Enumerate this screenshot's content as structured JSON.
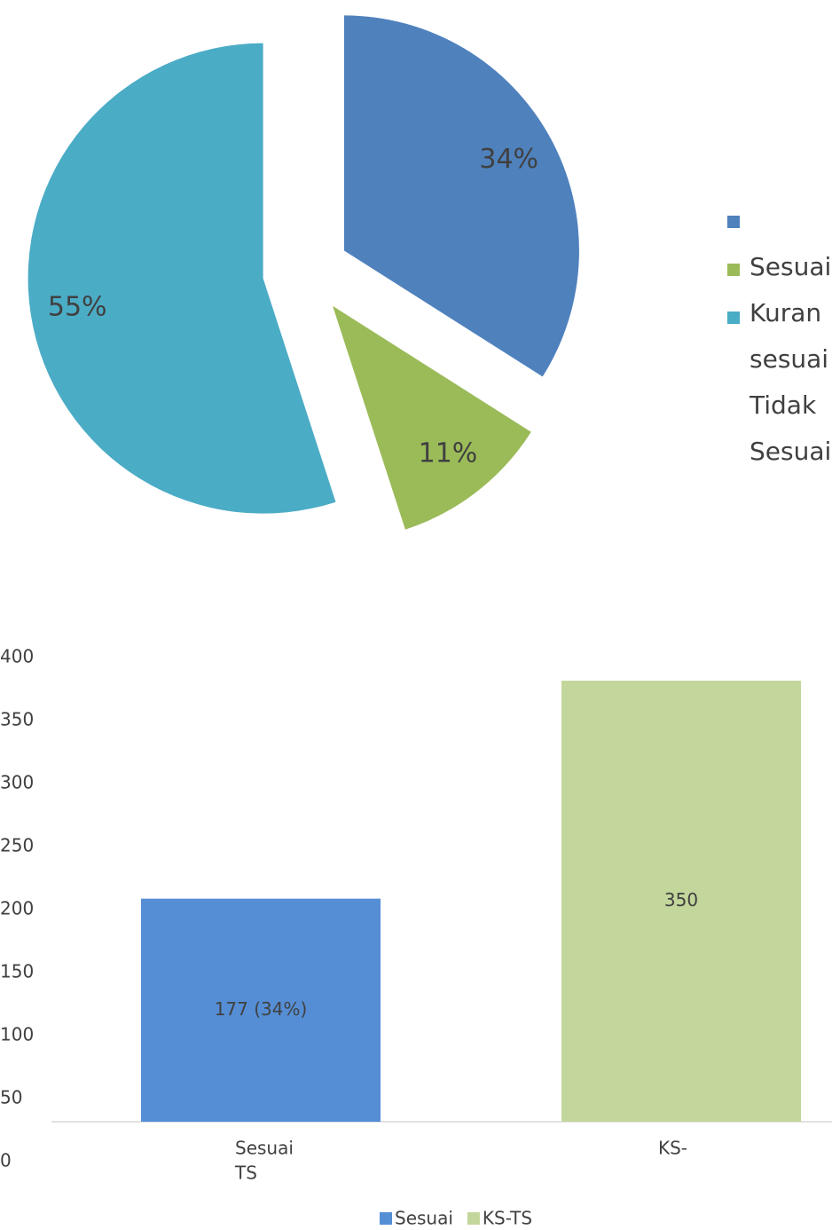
{
  "chart_data": [
    {
      "type": "pie",
      "values": [
        34,
        11,
        55
      ],
      "value_labels": [
        "34%",
        "11%",
        "55%"
      ],
      "colors": [
        "#4f81bd",
        "#9bbb59",
        "#4bacc6"
      ],
      "legend_lines": [
        "Sesuai",
        "Kuran",
        "sesuai",
        "Tidak",
        "Sesuai"
      ]
    },
    {
      "type": "bar",
      "categories": [
        [
          "Sesuai",
          "TS"
        ],
        [
          "KS-"
        ]
      ],
      "values": [
        177,
        350
      ],
      "value_labels": [
        "177 (34%)",
        "350"
      ],
      "legend": [
        {
          "name": "Sesuai",
          "color": "#558ed5"
        },
        {
          "name": "KS-TS",
          "color": "#c3d69b"
        }
      ],
      "ylim": [
        0,
        400
      ],
      "yticks": [
        0,
        50,
        100,
        150,
        200,
        250,
        300,
        350,
        400
      ]
    }
  ]
}
